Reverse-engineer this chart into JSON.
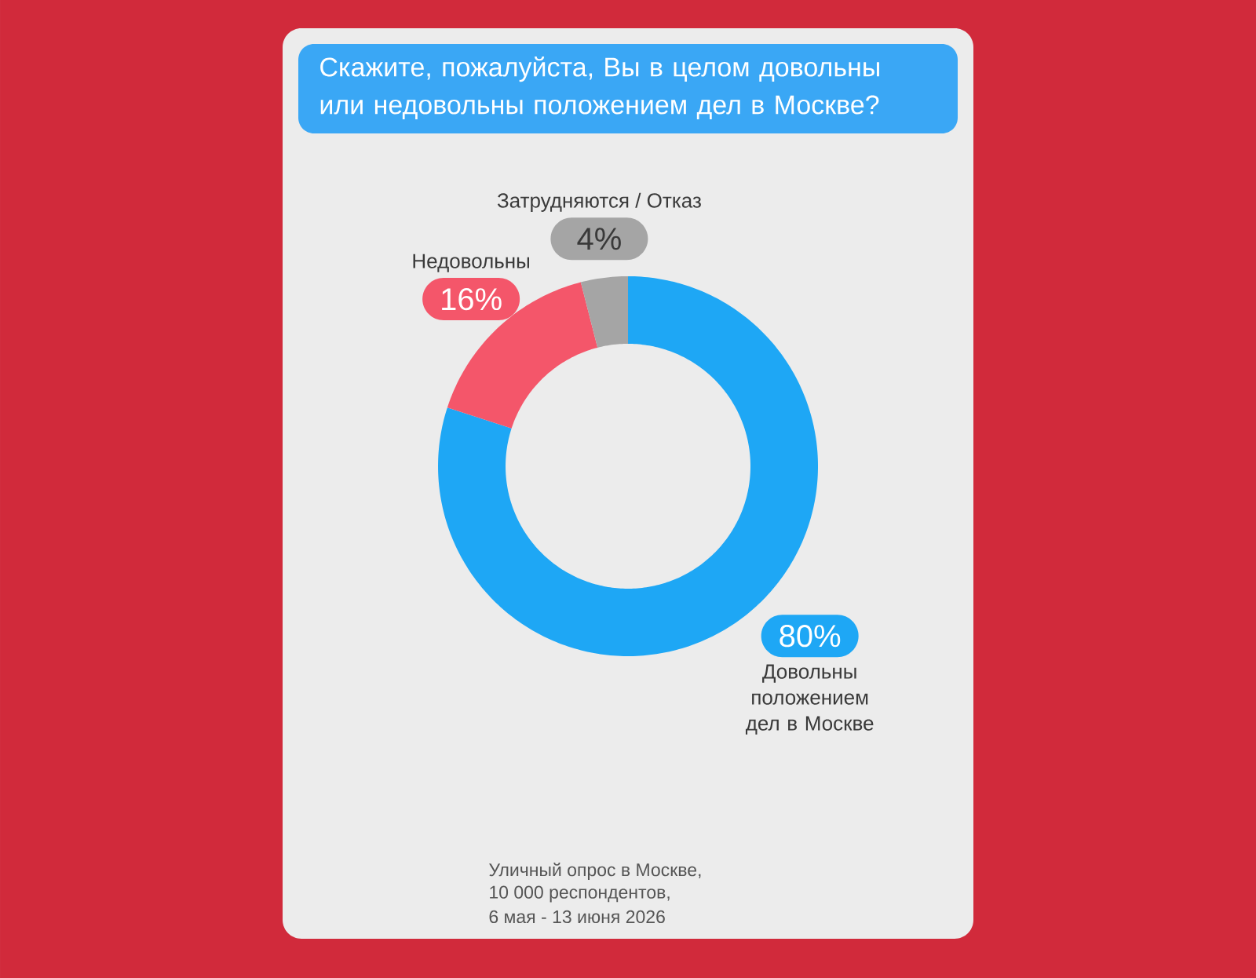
{
  "chart_data": {
    "type": "donut",
    "title": "Скажите, пожалуйста, Вы в целом довольны или недовольны положением дел в Москве?",
    "categories": [
      "Довольны положением дел в Москве",
      "Недовольны",
      "Затрудняются / Отказ"
    ],
    "values": [
      80,
      16,
      4
    ],
    "colors": [
      "#1ea7f5",
      "#f4566a",
      "#a5a5a5"
    ],
    "value_labels": [
      "80%",
      "16%",
      "4%"
    ],
    "annotations": [
      "Уличный опрос в Москве,",
      "10 000 респондентов,",
      "6 мая - 13 июня 2026"
    ]
  }
}
